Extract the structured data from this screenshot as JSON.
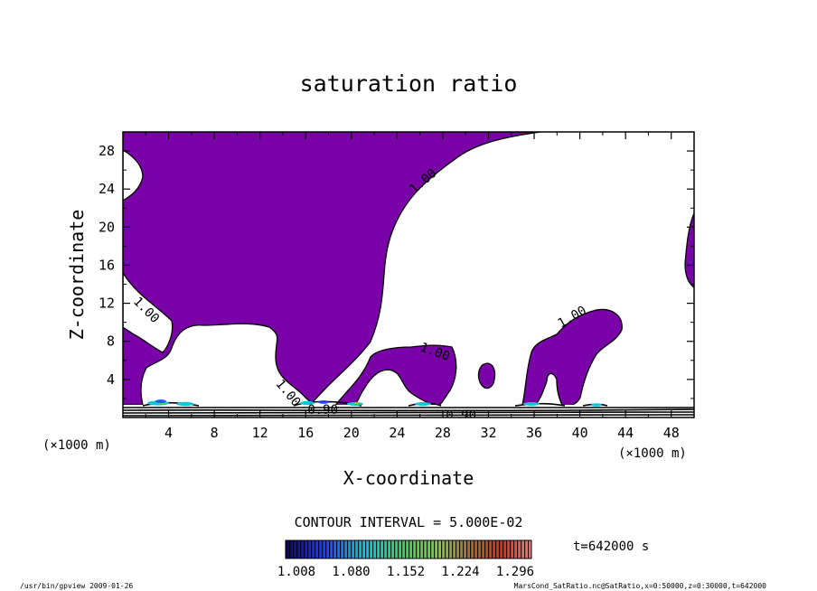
{
  "chart_data": {
    "type": "heatmap",
    "title": "saturation ratio",
    "xlabel": "X-coordinate",
    "ylabel": "Z-coordinate",
    "x_unit_label": "(×1000 m)",
    "z_unit_label": "(×1000 m)",
    "xlim": [
      0,
      50
    ],
    "ylim": [
      0,
      30
    ],
    "x_ticks": [
      4,
      8,
      12,
      16,
      20,
      24,
      28,
      32,
      36,
      40,
      44,
      48
    ],
    "y_ticks": [
      4,
      8,
      12,
      16,
      20,
      24,
      28
    ],
    "contour_interval_text": "CONTOUR INTERVAL = 5.000E-02",
    "time_label": "t=642000 s",
    "colorbar_ticks": [
      "1.008",
      "1.080",
      "1.152",
      "1.224",
      "1.296"
    ],
    "colorbar_range": [
      1.008,
      1.296
    ],
    "fill_color": "#7a00a8",
    "contour_labels": [
      {
        "text": "1.00",
        "x": 26.5,
        "z": 24.5,
        "angle": -40
      },
      {
        "text": "1.00",
        "x": 1.8,
        "z": 11.0,
        "angle": 45
      },
      {
        "text": "1.00",
        "x": 27.2,
        "z": 6.5,
        "angle": 20
      },
      {
        "text": "1.00",
        "x": 39.5,
        "z": 10.2,
        "angle": -30
      },
      {
        "text": "1.00",
        "x": 14.2,
        "z": 2.3,
        "angle": 50
      },
      {
        "text": "0.90",
        "x": 17.5,
        "z": 0.4,
        "angle": 0
      },
      {
        "text": "0.90",
        "x": 29.6,
        "z": -0.2,
        "angle": 0
      }
    ],
    "grid": false
  },
  "footer": {
    "left": "/usr/bin/gpview  2009-01-26",
    "right": "MarsCond_SatRatio.nc@SatRatio,x=0:50000,z=0:30000,t=642000"
  }
}
